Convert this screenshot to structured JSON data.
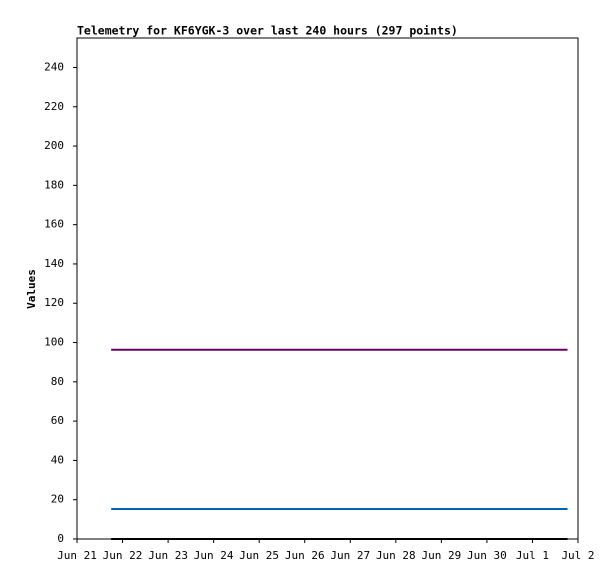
{
  "chart_data": {
    "type": "line",
    "title": "Telemetry for KF6YGK-3 over last 240 hours (297 points)",
    "y_label": "Values",
    "xlim": [
      0,
      11
    ],
    "xticks": [
      {
        "value": 0,
        "label": "Jun 21"
      },
      {
        "value": 1,
        "label": "Jun 22"
      },
      {
        "value": 2,
        "label": "Jun 23"
      },
      {
        "value": 3,
        "label": "Jun 24"
      },
      {
        "value": 4,
        "label": "Jun 25"
      },
      {
        "value": 5,
        "label": "Jun 26"
      },
      {
        "value": 6,
        "label": "Jun 27"
      },
      {
        "value": 7,
        "label": "Jun 28"
      },
      {
        "value": 8,
        "label": "Jun 29"
      },
      {
        "value": 9,
        "label": "Jun 30"
      },
      {
        "value": 10,
        "label": "Jul 1"
      },
      {
        "value": 11,
        "label": "Jul 2"
      }
    ],
    "ylim": [
      0,
      255
    ],
    "yticks": [
      0,
      20,
      40,
      60,
      80,
      100,
      120,
      140,
      160,
      180,
      200,
      220,
      240
    ],
    "series": [
      {
        "color": "#660066",
        "x": [
          0.75,
          10.77
        ],
        "values": [
          96.3,
          96.3
        ]
      },
      {
        "color": "#0066b3",
        "x": [
          0.75,
          10.77
        ],
        "values": [
          15.3,
          15.3
        ]
      },
      {
        "color": "#000000",
        "x": [
          0.75,
          10.77
        ],
        "values": [
          0,
          0
        ]
      }
    ]
  }
}
